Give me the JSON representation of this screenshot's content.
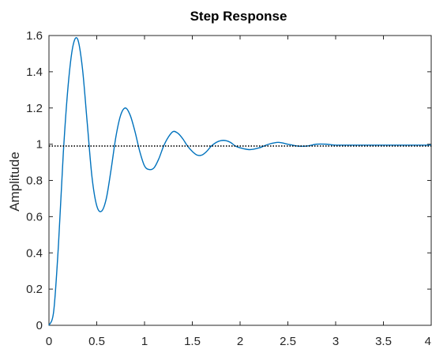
{
  "chart_data": {
    "type": "line",
    "title": "Step Response",
    "xlabel": "",
    "ylabel": "Amplitude",
    "xlim": [
      0,
      4
    ],
    "ylim": [
      0,
      1.6
    ],
    "xticks": [
      "0",
      "0.5",
      "1",
      "1.5",
      "2",
      "2.5",
      "3",
      "3.5",
      "4"
    ],
    "yticks": [
      "0",
      "0.2",
      "0.4",
      "0.6",
      "0.8",
      "1",
      "1.2",
      "1.4",
      "1.6"
    ],
    "grid": false,
    "series": [
      {
        "color": "#0072BD",
        "style": "solid",
        "x": [
          0,
          0.05,
          0.1,
          0.15,
          0.2,
          0.25,
          0.3,
          0.35,
          0.4,
          0.45,
          0.5,
          0.55,
          0.6,
          0.65,
          0.7,
          0.75,
          0.8,
          0.85,
          0.9,
          0.95,
          1.0,
          1.05,
          1.1,
          1.15,
          1.2,
          1.25,
          1.3,
          1.35,
          1.4,
          1.45,
          1.5,
          1.55,
          1.6,
          1.65,
          1.7,
          1.75,
          1.8,
          1.85,
          1.9,
          1.95,
          2.0,
          2.1,
          2.2,
          2.3,
          2.4,
          2.5,
          2.6,
          2.7,
          2.8,
          2.9,
          3.0,
          3.2,
          3.4,
          3.6,
          3.8,
          4.0
        ],
        "values": [
          0,
          0.08,
          0.45,
          0.95,
          1.32,
          1.54,
          1.58,
          1.42,
          1.12,
          0.82,
          0.66,
          0.63,
          0.7,
          0.86,
          1.04,
          1.16,
          1.2,
          1.16,
          1.07,
          0.96,
          0.88,
          0.86,
          0.87,
          0.92,
          0.99,
          1.04,
          1.07,
          1.06,
          1.03,
          0.99,
          0.96,
          0.94,
          0.94,
          0.96,
          0.99,
          1.01,
          1.02,
          1.02,
          1.01,
          0.99,
          0.98,
          0.97,
          0.98,
          1.0,
          1.01,
          1.0,
          0.99,
          0.99,
          1.0,
          1.0,
          0.995,
          0.995,
          0.995,
          0.995,
          0.995,
          0.995
        ]
      },
      {
        "color": "#000000",
        "style": "dotted",
        "x": [
          0,
          4
        ],
        "values": [
          0.99,
          0.99
        ]
      }
    ]
  },
  "colors": {
    "line": "#0072BD",
    "reference": "#000000",
    "axis": "#262626",
    "background": "#ffffff"
  }
}
